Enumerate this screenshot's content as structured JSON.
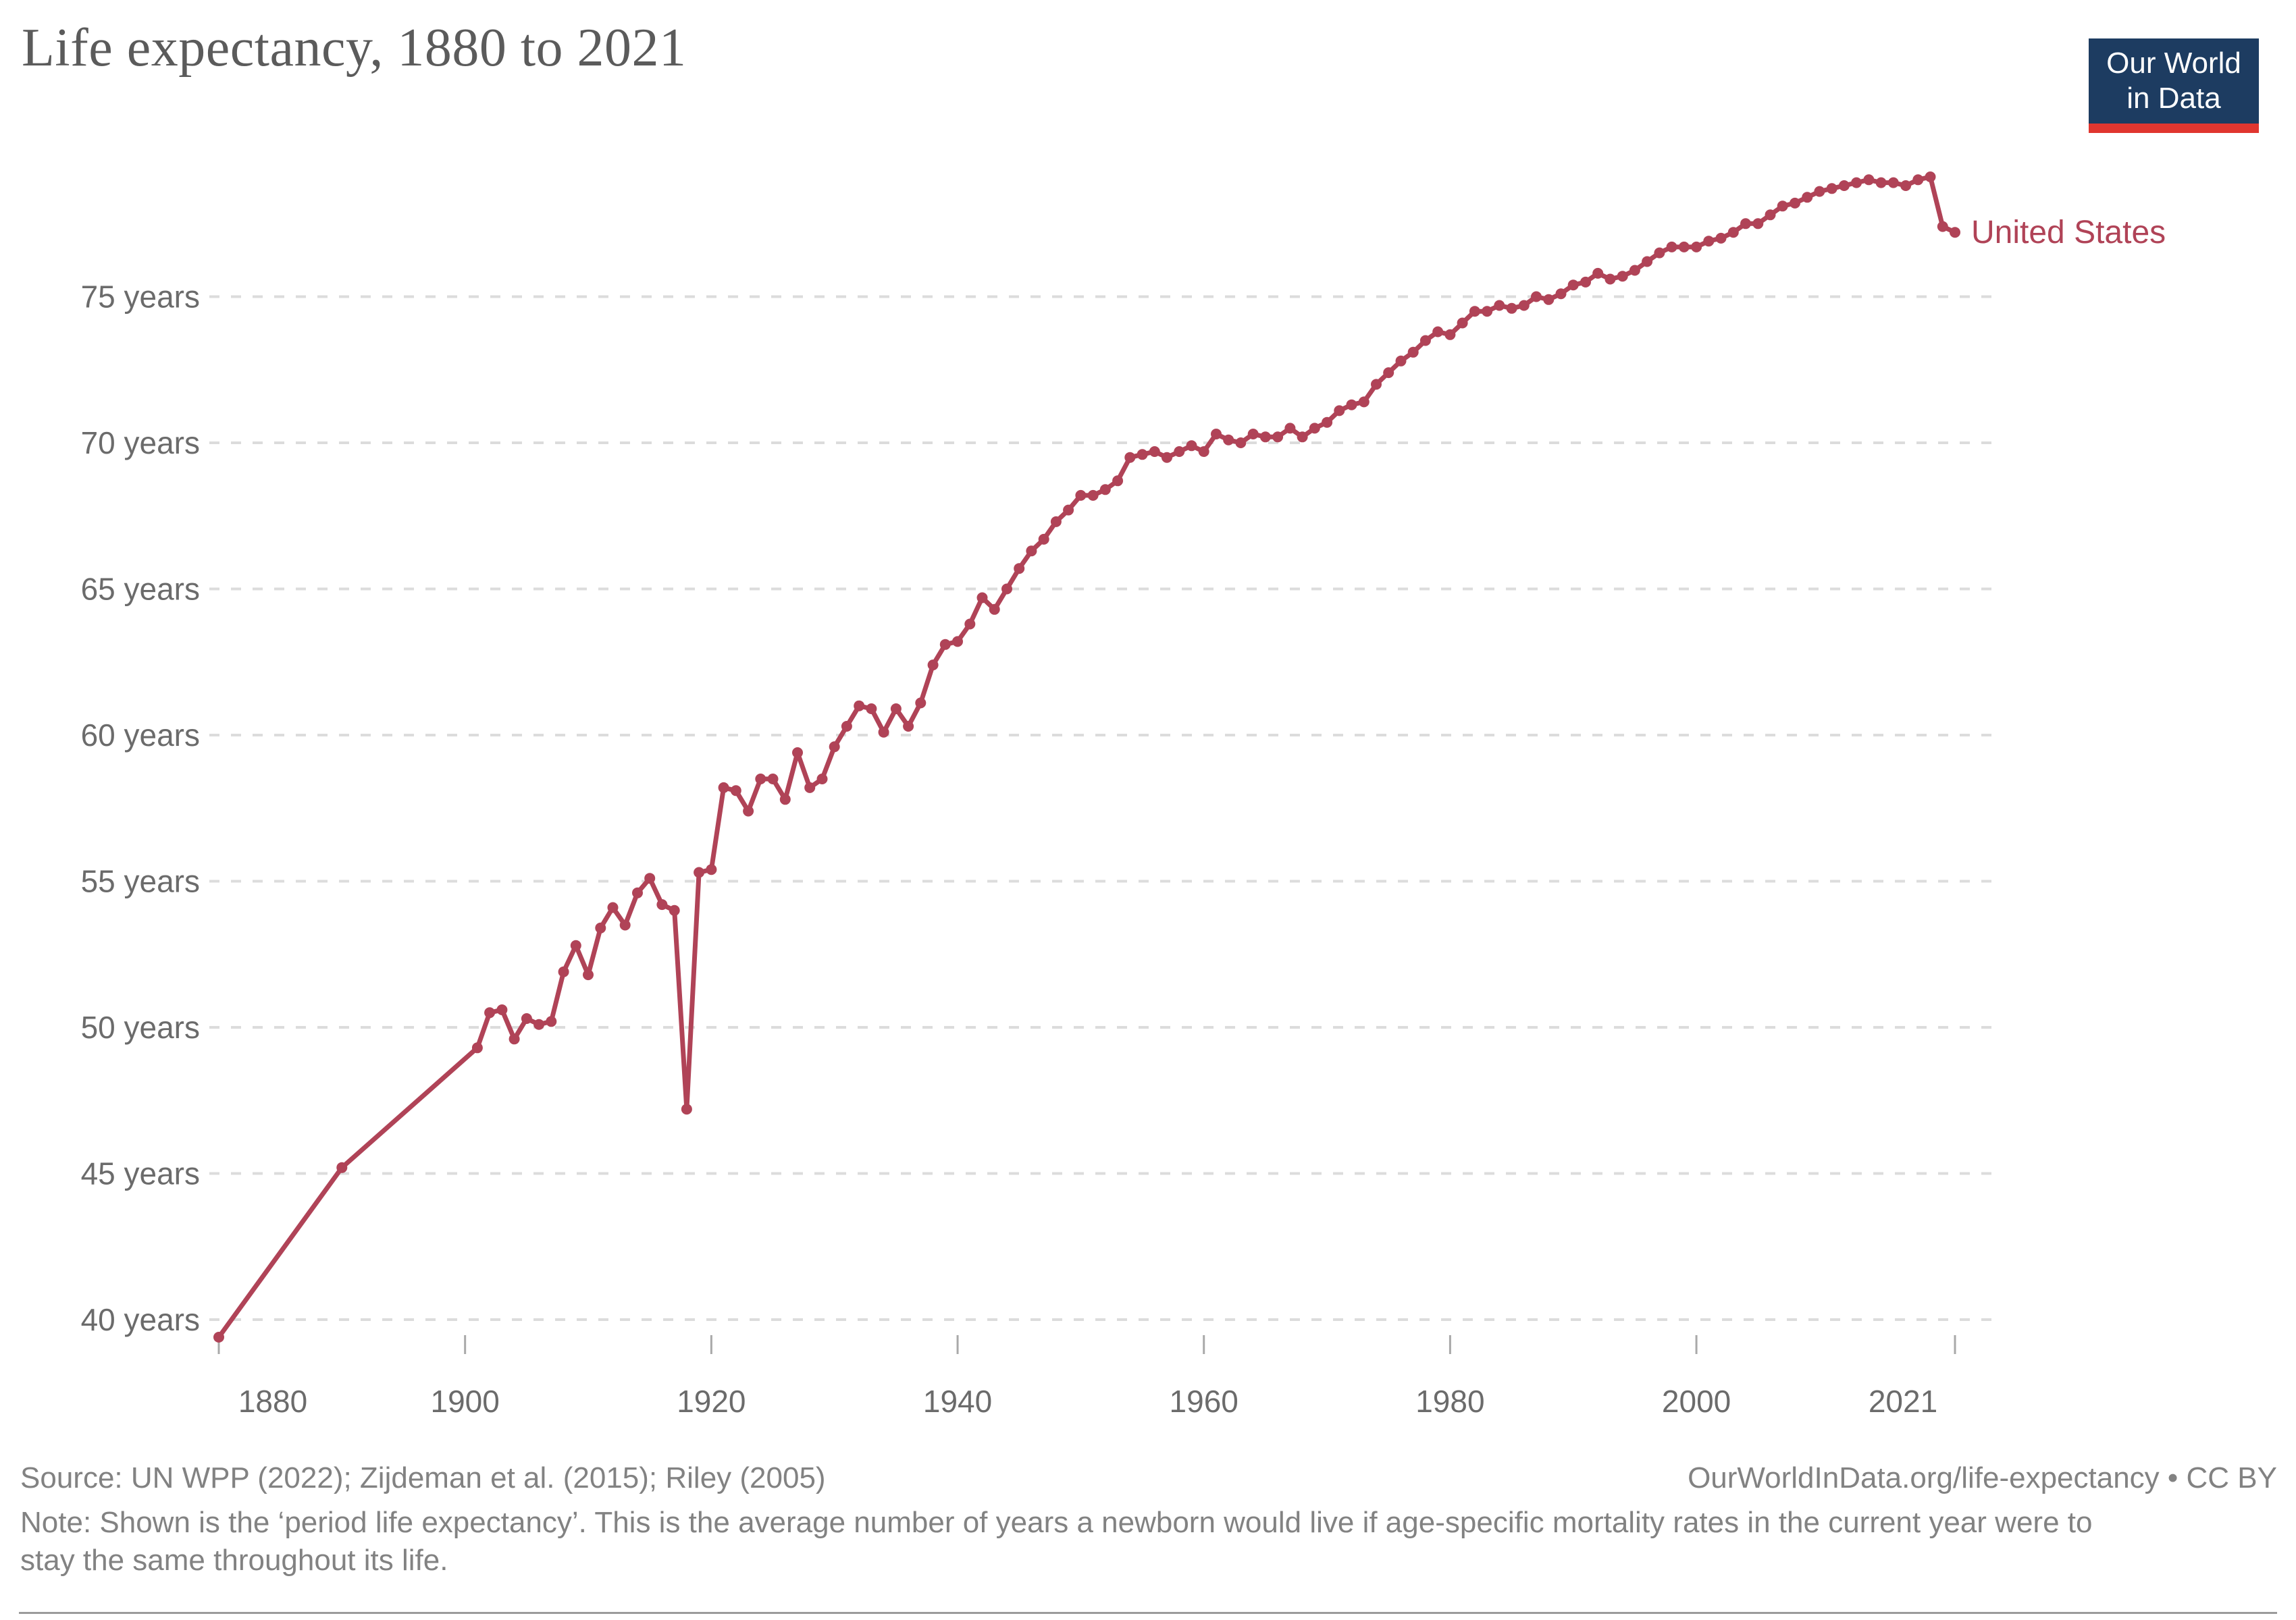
{
  "header": {
    "title": "Life expectancy, 1880 to 2021"
  },
  "logo": {
    "line1": "Our World",
    "line2": "in Data"
  },
  "series_label": "United States",
  "footer": {
    "source": "Source: UN WPP (2022); Zijdeman et al. (2015); Riley (2005)",
    "license": "OurWorldInData.org/life-expectancy • CC BY",
    "note": "Note: Shown is the ‘period life expectancy’. This is the average number of years a newborn would live if age-specific mortality rates in the current year were to stay the same throughout its life."
  },
  "colors": {
    "line": "#b04357",
    "grid": "#dcdcdc",
    "axis_text": "#6b6b6b",
    "tick_mark": "#a9a9a9",
    "title_text": "#5b5b5b",
    "footer_text": "#828282",
    "logo_bg": "#1d3c61",
    "logo_stripe": "#e0362f"
  },
  "chart_data": {
    "type": "line",
    "title": "Life expectancy, 1880 to 2021",
    "xlabel": "",
    "ylabel": "",
    "ytick_suffix": " years",
    "yticks": [
      40,
      45,
      50,
      55,
      60,
      65,
      70,
      75
    ],
    "xticks": [
      1880,
      1900,
      1920,
      1940,
      1960,
      1980,
      2000,
      2021
    ],
    "xlim": [
      1880,
      2021
    ],
    "ylim": [
      39,
      80
    ],
    "grid": "dashed-horizontal",
    "legend_position": "end-of-line",
    "series": [
      {
        "name": "United States",
        "points": [
          [
            1880,
            39.4
          ],
          [
            1890,
            45.2
          ],
          [
            1901,
            49.3
          ],
          [
            1902,
            50.5
          ],
          [
            1903,
            50.6
          ],
          [
            1904,
            49.6
          ],
          [
            1905,
            50.3
          ],
          [
            1906,
            50.1
          ],
          [
            1907,
            50.2
          ],
          [
            1908,
            51.9
          ],
          [
            1909,
            52.8
          ],
          [
            1910,
            51.8
          ],
          [
            1911,
            53.4
          ],
          [
            1912,
            54.1
          ],
          [
            1913,
            53.5
          ],
          [
            1914,
            54.6
          ],
          [
            1915,
            55.1
          ],
          [
            1916,
            54.2
          ],
          [
            1917,
            54.0
          ],
          [
            1918,
            47.2
          ],
          [
            1919,
            55.3
          ],
          [
            1920,
            55.4
          ],
          [
            1921,
            58.2
          ],
          [
            1922,
            58.1
          ],
          [
            1923,
            57.4
          ],
          [
            1924,
            58.5
          ],
          [
            1925,
            58.5
          ],
          [
            1926,
            57.8
          ],
          [
            1927,
            59.4
          ],
          [
            1928,
            58.2
          ],
          [
            1929,
            58.5
          ],
          [
            1930,
            59.6
          ],
          [
            1931,
            60.3
          ],
          [
            1932,
            61.0
          ],
          [
            1933,
            60.9
          ],
          [
            1934,
            60.1
          ],
          [
            1935,
            60.9
          ],
          [
            1936,
            60.3
          ],
          [
            1937,
            61.1
          ],
          [
            1938,
            62.4
          ],
          [
            1939,
            63.1
          ],
          [
            1940,
            63.2
          ],
          [
            1941,
            63.8
          ],
          [
            1942,
            64.7
          ],
          [
            1943,
            64.3
          ],
          [
            1944,
            65.0
          ],
          [
            1945,
            65.7
          ],
          [
            1946,
            66.3
          ],
          [
            1947,
            66.7
          ],
          [
            1948,
            67.3
          ],
          [
            1949,
            67.7
          ],
          [
            1950,
            68.2
          ],
          [
            1951,
            68.2
          ],
          [
            1952,
            68.4
          ],
          [
            1953,
            68.7
          ],
          [
            1954,
            69.5
          ],
          [
            1955,
            69.6
          ],
          [
            1956,
            69.7
          ],
          [
            1957,
            69.5
          ],
          [
            1958,
            69.7
          ],
          [
            1959,
            69.9
          ],
          [
            1960,
            69.7
          ],
          [
            1961,
            70.3
          ],
          [
            1962,
            70.1
          ],
          [
            1963,
            70.0
          ],
          [
            1964,
            70.3
          ],
          [
            1965,
            70.2
          ],
          [
            1966,
            70.2
          ],
          [
            1967,
            70.5
          ],
          [
            1968,
            70.2
          ],
          [
            1969,
            70.5
          ],
          [
            1970,
            70.7
          ],
          [
            1971,
            71.1
          ],
          [
            1972,
            71.3
          ],
          [
            1973,
            71.4
          ],
          [
            1974,
            72.0
          ],
          [
            1975,
            72.4
          ],
          [
            1976,
            72.8
          ],
          [
            1977,
            73.1
          ],
          [
            1978,
            73.5
          ],
          [
            1979,
            73.8
          ],
          [
            1980,
            73.7
          ],
          [
            1981,
            74.1
          ],
          [
            1982,
            74.5
          ],
          [
            1983,
            74.5
          ],
          [
            1984,
            74.7
          ],
          [
            1985,
            74.6
          ],
          [
            1986,
            74.7
          ],
          [
            1987,
            75.0
          ],
          [
            1988,
            74.9
          ],
          [
            1989,
            75.1
          ],
          [
            1990,
            75.4
          ],
          [
            1991,
            75.5
          ],
          [
            1992,
            75.8
          ],
          [
            1993,
            75.6
          ],
          [
            1994,
            75.7
          ],
          [
            1995,
            75.9
          ],
          [
            1996,
            76.2
          ],
          [
            1997,
            76.5
          ],
          [
            1998,
            76.7
          ],
          [
            1999,
            76.7
          ],
          [
            2000,
            76.7
          ],
          [
            2001,
            76.9
          ],
          [
            2002,
            77.0
          ],
          [
            2003,
            77.2
          ],
          [
            2004,
            77.5
          ],
          [
            2005,
            77.5
          ],
          [
            2006,
            77.8
          ],
          [
            2007,
            78.1
          ],
          [
            2008,
            78.2
          ],
          [
            2009,
            78.4
          ],
          [
            2010,
            78.6
          ],
          [
            2011,
            78.7
          ],
          [
            2012,
            78.8
          ],
          [
            2013,
            78.9
          ],
          [
            2014,
            79.0
          ],
          [
            2015,
            78.9
          ],
          [
            2016,
            78.9
          ],
          [
            2017,
            78.8
          ],
          [
            2018,
            79.0
          ],
          [
            2019,
            79.1
          ],
          [
            2020,
            77.4
          ],
          [
            2021,
            77.2
          ]
        ]
      }
    ]
  }
}
